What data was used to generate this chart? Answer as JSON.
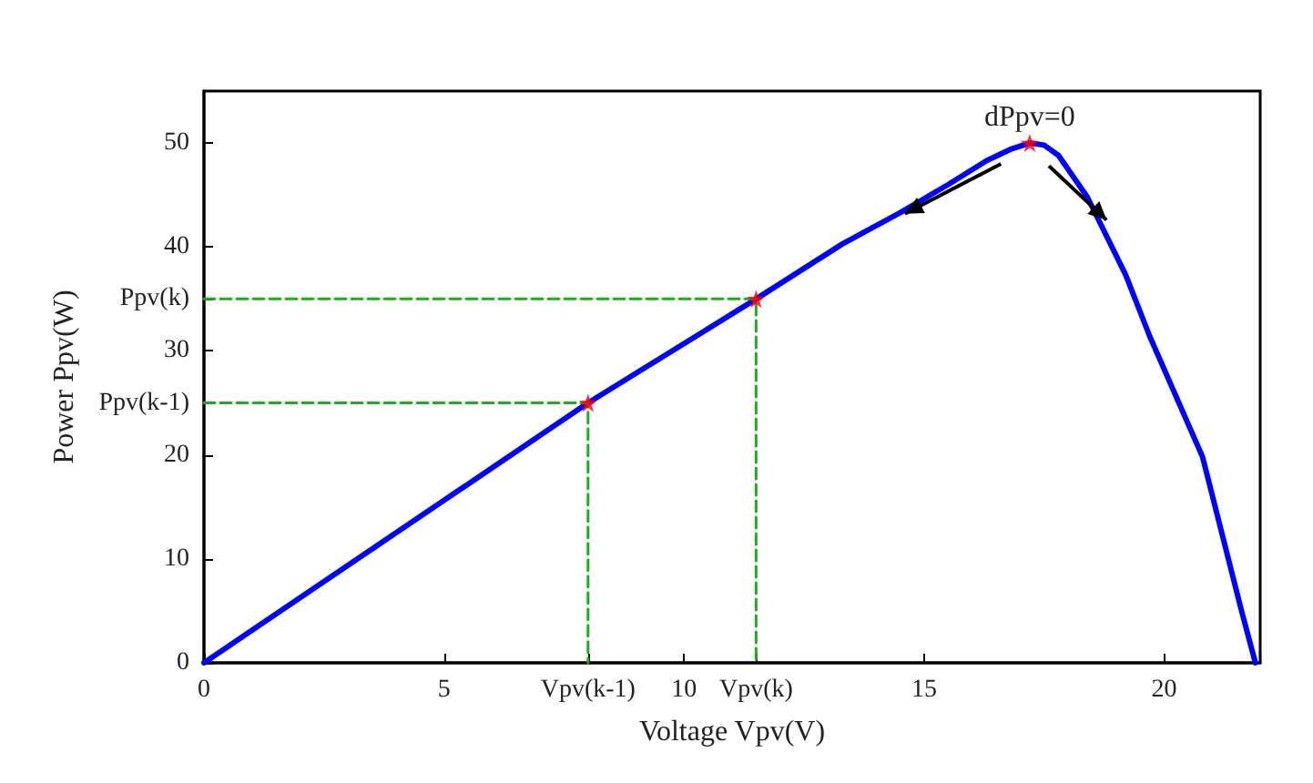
{
  "chart_data": {
    "type": "line",
    "xlabel": "Voltage Vpv(V)",
    "ylabel": "Power Ppv(W)",
    "xlim": [
      0,
      22
    ],
    "ylim": [
      0,
      55
    ],
    "xticks": [
      0,
      5,
      {
        "value": 8,
        "label": "Vpv(k-1)"
      },
      10,
      {
        "value": 11.5,
        "label": "Vpv(k)"
      },
      15,
      20
    ],
    "yticks": [
      0,
      10,
      20,
      {
        "value": 25,
        "label": "Ppv(k-1)"
      },
      30,
      {
        "value": 35,
        "label": "Ppv(k)"
      },
      40,
      50
    ],
    "grid": false,
    "annotations": [
      {
        "text": "dPpv=0",
        "x": 17.2,
        "y": 50
      }
    ],
    "series": [
      {
        "color": "#0000ff",
        "marker": "none",
        "line_style": "solid",
        "x": [
          0,
          8,
          11.5,
          13.3,
          14.5,
          15.5,
          16.3,
          16.8,
          17.2,
          17.5,
          17.8,
          18.4,
          19.2,
          19.7,
          20.8,
          21.6,
          21.9
        ],
        "values": [
          0,
          25,
          35,
          40.3,
          43.3,
          46,
          48.3,
          49.4,
          50,
          49.8,
          48.8,
          44.8,
          37.3,
          31.4,
          19.8,
          5.2,
          0
        ]
      },
      {
        "type": "line",
        "color": "#22aa22",
        "marker": "none",
        "line_style": "dashed",
        "x": [
          0,
          8,
          8
        ],
        "values": [
          25,
          25,
          0
        ]
      },
      {
        "type": "line",
        "color": "#22aa22",
        "marker": "none",
        "line_style": "dashed",
        "x": [
          0,
          11.5,
          11.5
        ],
        "values": [
          35,
          35,
          0
        ]
      },
      {
        "type": "scatter",
        "color": "#ff0000",
        "marker": "star",
        "x": [
          8,
          11.5,
          17.2
        ],
        "values": [
          25,
          35,
          50
        ]
      }
    ]
  }
}
